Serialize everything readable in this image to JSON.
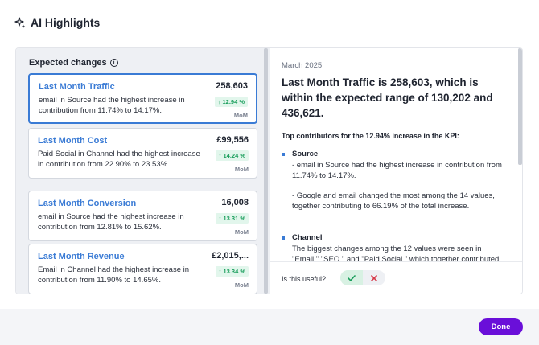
{
  "dialog": {
    "title": "AI Highlights"
  },
  "expected": {
    "heading": "Expected changes",
    "cards": [
      {
        "title": "Last Month Traffic",
        "description": "email in Source had the highest increase in contribution from 11.74% to 14.17%.",
        "value": "258,603",
        "change": "↑ 12.94 %",
        "period": "MoM",
        "selected": true
      },
      {
        "title": "Last Month Cost",
        "description": "Paid Social in Channel had the highest increase in contribution from 22.90% to 23.53%.",
        "value": "£99,556",
        "change": "↑ 14.24 %",
        "period": "MoM",
        "selected": false
      },
      {
        "title": "Last Month Conversion",
        "description": "email in Source had the highest increase in contribution from 12.81% to 15.62%.",
        "value": "16,008",
        "change": "↑ 13.31 %",
        "period": "MoM",
        "selected": false
      },
      {
        "title": "Last Month Revenue",
        "description": "Email in Channel had the highest increase in contribution from 11.90% to 14.65%.",
        "value": "£2,015,...",
        "change": "↑ 13.34 %",
        "period": "MoM",
        "selected": false
      }
    ]
  },
  "detail": {
    "date": "March 2025",
    "headline": "Last Month Traffic is 258,603, which is within the expected range of 130,202 and 436,621.",
    "subheading": "Top contributors for the 12.94% increase in the KPI:",
    "sections": [
      {
        "label": "Source",
        "lines": [
          "- email in Source had the highest increase in contribution from 11.74% to 14.17%.",
          "- Google and email changed the most among the 14 values, together contributing to 66.19% of the total increase."
        ]
      },
      {
        "label": "Channel",
        "lines": [
          "The biggest changes among the 12 values were seen in \"Email,\" \"SEO,\" and \"Paid Social,\" which together contributed"
        ]
      }
    ]
  },
  "feedback": {
    "question": "Is this useful?"
  },
  "footer": {
    "done_label": "Done"
  },
  "colors": {
    "accent": "#3a7bd5",
    "positive": "#1a9e5c",
    "primary_button": "#6a0fd9"
  }
}
